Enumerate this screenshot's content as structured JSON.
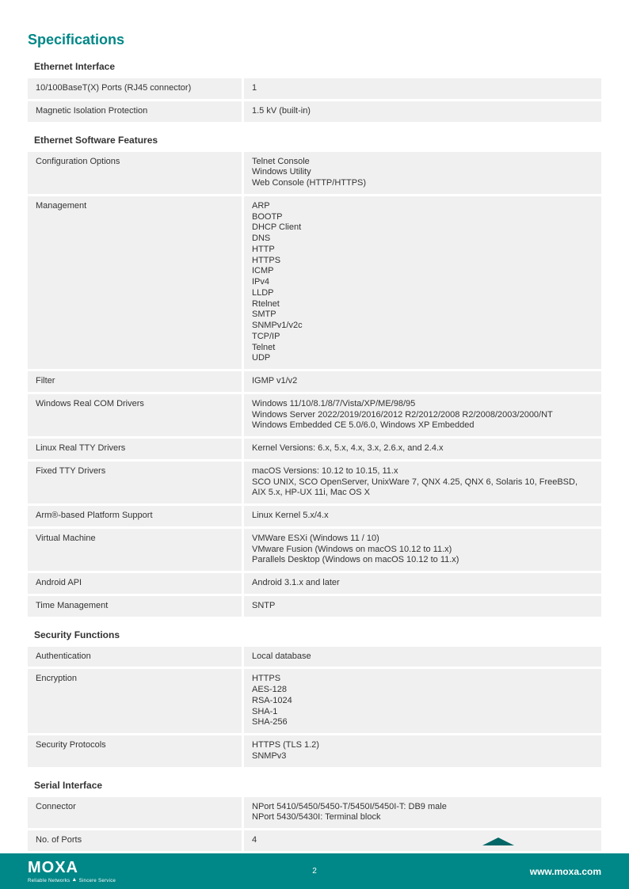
{
  "title": "Specifications",
  "sections": [
    {
      "header": "Ethernet Interface",
      "rows": [
        {
          "label": "10/100BaseT(X) Ports (RJ45 connector)",
          "value": "1"
        },
        {
          "label": "Magnetic Isolation Protection",
          "value": "1.5 kV (built-in)"
        }
      ]
    },
    {
      "header": "Ethernet Software Features",
      "rows": [
        {
          "label": "Configuration Options",
          "value": "Telnet Console\nWindows Utility\nWeb Console (HTTP/HTTPS)"
        },
        {
          "label": "Management",
          "value": "ARP\nBOOTP\nDHCP Client\nDNS\nHTTP\nHTTPS\nICMP\nIPv4\nLLDP\nRtelnet\nSMTP\nSNMPv1/v2c\nTCP/IP\nTelnet\nUDP"
        },
        {
          "label": "Filter",
          "value": "IGMP v1/v2"
        },
        {
          "label": "Windows Real COM Drivers",
          "value": "Windows 11/10/8.1/8/7/Vista/XP/ME/98/95\nWindows Server 2022/2019/2016/2012 R2/2012/2008 R2/2008/2003/2000/NT\nWindows Embedded CE 5.0/6.0, Windows XP Embedded"
        },
        {
          "label": "Linux Real TTY Drivers",
          "value": "Kernel Versions: 6.x, 5.x, 4.x, 3.x, 2.6.x, and 2.4.x"
        },
        {
          "label": "Fixed TTY Drivers",
          "value": "macOS Versions: 10.12 to 10.15, 11.x\nSCO UNIX, SCO OpenServer, UnixWare 7, QNX 4.25, QNX 6, Solaris 10, FreeBSD, AIX 5.x, HP-UX 11i, Mac OS X"
        },
        {
          "label": "Arm®-based Platform Support",
          "value": "Linux Kernel 5.x/4.x"
        },
        {
          "label": "Virtual Machine",
          "value": "VMWare ESXi (Windows 11 / 10)\nVMware Fusion (Windows on macOS 10.12 to 11.x)\nParallels Desktop (Windows on macOS 10.12 to 11.x)"
        },
        {
          "label": "Android API",
          "value": "Android 3.1.x and later"
        },
        {
          "label": "Time Management",
          "value": "SNTP"
        }
      ]
    },
    {
      "header": "Security Functions",
      "rows": [
        {
          "label": "Authentication",
          "value": "Local database"
        },
        {
          "label": "Encryption",
          "value": "HTTPS\nAES-128\nRSA-1024\nSHA-1\nSHA-256"
        },
        {
          "label": "Security Protocols",
          "value": "HTTPS (TLS 1.2)\nSNMPv3"
        }
      ]
    },
    {
      "header": "Serial Interface",
      "rows": [
        {
          "label": "Connector",
          "value": "NPort 5410/5450/5450-T/5450I/5450I-T: DB9 male\nNPort 5430/5430I: Terminal block"
        },
        {
          "label": "No. of Ports",
          "value": "4"
        }
      ]
    }
  ],
  "footer": {
    "logo": "MOXA",
    "tagline": "Reliable Networks ▲ Sincere Service",
    "page": "2",
    "url": "www.moxa.com"
  }
}
